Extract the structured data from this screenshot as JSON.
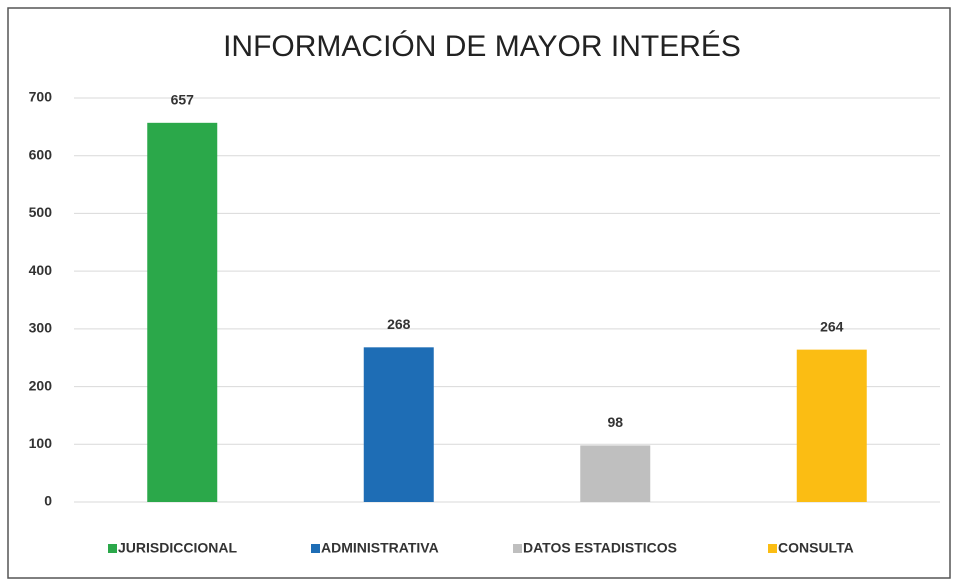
{
  "chart_data": {
    "type": "bar",
    "title": "INFORMACIÓN DE MAYOR INTERÉS",
    "series": [
      {
        "name": "JURISDICCIONAL",
        "color": "#2ba84a",
        "values": [
          657
        ]
      },
      {
        "name": "ADMINISTRATIVA",
        "color": "#1e6db5",
        "values": [
          268
        ]
      },
      {
        "name": "DATOS ESTADISTICOS",
        "color": "#bfbfbf",
        "values": [
          98
        ]
      },
      {
        "name": "CONSULTA",
        "color": "#fbbd13",
        "values": [
          264
        ]
      }
    ],
    "ylim": [
      0,
      700
    ],
    "yticks": [
      0,
      100,
      200,
      300,
      400,
      500,
      600,
      700
    ],
    "grid": true,
    "legend": "bottom"
  }
}
